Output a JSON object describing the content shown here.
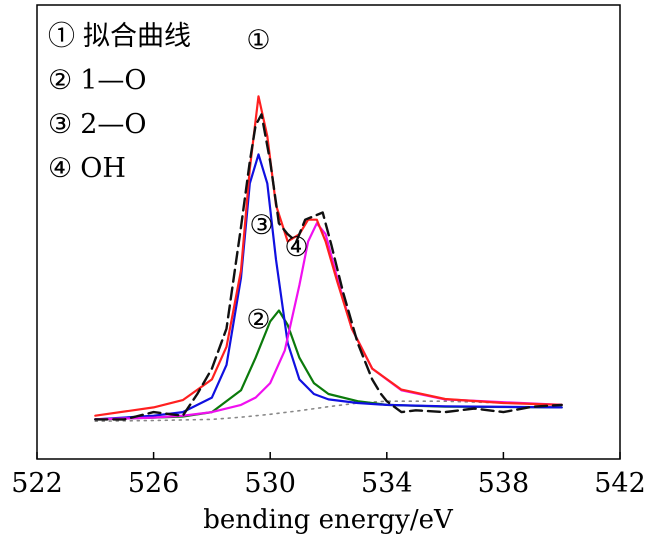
{
  "chart_data": {
    "type": "line",
    "xlabel": "bending energy/eV",
    "ylabel": "",
    "xlim": [
      522,
      542
    ],
    "ylim": [
      0,
      1
    ],
    "xticks": [
      522,
      526,
      530,
      534,
      538,
      542
    ],
    "grid": false,
    "legend": {
      "placement": "top-left",
      "entries": [
        {
          "marker": "①",
          "label": "拟合曲线"
        },
        {
          "marker": "②",
          "label": "1—O"
        },
        {
          "marker": "③",
          "label": "2—O"
        },
        {
          "marker": "④",
          "label": "OH"
        }
      ]
    },
    "annotations": [
      {
        "text": "①",
        "x": 529.6,
        "y": 1.03
      },
      {
        "text": "③",
        "x": 529.7,
        "y": 0.52
      },
      {
        "text": "④",
        "x": 530.9,
        "y": 0.46
      },
      {
        "text": "②",
        "x": 529.6,
        "y": 0.26
      }
    ],
    "series": [
      {
        "color": "#ff2020",
        "style": "solid",
        "x": [
          524,
          526,
          527,
          528,
          528.5,
          529,
          529.3,
          529.6,
          529.9,
          530.2,
          530.6,
          531,
          531.3,
          531.6,
          531.9,
          532.3,
          532.8,
          533.5,
          534.5,
          536,
          538,
          540
        ],
        "y": [
          0.02,
          0.043,
          0.063,
          0.12,
          0.21,
          0.42,
          0.7,
          0.9,
          0.79,
          0.6,
          0.5,
          0.52,
          0.56,
          0.56,
          0.5,
          0.39,
          0.26,
          0.15,
          0.092,
          0.066,
          0.055,
          0.05
        ]
      },
      {
        "color": "#1010e0",
        "style": "solid",
        "x": [
          524,
          526,
          527,
          528,
          528.5,
          529,
          529.3,
          529.6,
          529.9,
          530.2,
          530.6,
          531,
          531.5,
          532,
          533,
          534,
          536,
          540
        ],
        "y": [
          0.01,
          0.02,
          0.03,
          0.07,
          0.16,
          0.4,
          0.66,
          0.74,
          0.66,
          0.45,
          0.22,
          0.12,
          0.08,
          0.065,
          0.055,
          0.05,
          0.046,
          0.043
        ]
      },
      {
        "color": "#0b7a0b",
        "style": "solid",
        "x": [
          524,
          526,
          527,
          528,
          529,
          529.5,
          530,
          530.3,
          530.6,
          531,
          531.5,
          532,
          533,
          534,
          536,
          540
        ],
        "y": [
          0.01,
          0.015,
          0.018,
          0.03,
          0.09,
          0.18,
          0.28,
          0.31,
          0.27,
          0.18,
          0.11,
          0.08,
          0.06,
          0.05,
          0.045,
          0.043
        ]
      },
      {
        "color": "#f010f0",
        "style": "solid",
        "x": [
          524,
          526,
          527,
          528,
          529,
          529.5,
          530,
          530.5,
          531,
          531.3,
          531.6,
          531.9,
          532.3,
          532.8,
          533.5,
          534.5,
          536,
          540
        ],
        "y": [
          0.01,
          0.015,
          0.02,
          0.03,
          0.05,
          0.07,
          0.11,
          0.2,
          0.38,
          0.5,
          0.55,
          0.52,
          0.4,
          0.26,
          0.15,
          0.09,
          0.065,
          0.05
        ]
      },
      {
        "color": "#111111",
        "style": "dashed",
        "x": [
          524,
          525,
          526,
          527,
          527.5,
          528,
          528.5,
          529,
          529.3,
          529.5,
          529.7,
          530,
          530.3,
          530.6,
          530.9,
          531.2,
          531.5,
          531.8,
          532.1,
          532.5,
          533,
          533.5,
          533.8,
          534,
          534.5,
          535,
          536,
          537,
          538,
          539,
          540
        ],
        "y": [
          0.01,
          0.01,
          0.03,
          0.02,
          0.08,
          0.15,
          0.26,
          0.54,
          0.72,
          0.82,
          0.85,
          0.72,
          0.55,
          0.52,
          0.5,
          0.56,
          0.57,
          0.58,
          0.49,
          0.36,
          0.22,
          0.12,
          0.08,
          0.06,
          0.03,
          0.035,
          0.03,
          0.04,
          0.03,
          0.045,
          0.05
        ]
      },
      {
        "color": "#888888",
        "style": "dotted",
        "x": [
          524,
          526,
          528,
          529,
          530,
          531,
          532,
          533,
          534,
          536,
          538,
          540
        ],
        "y": [
          0.005,
          0.007,
          0.01,
          0.016,
          0.024,
          0.034,
          0.045,
          0.055,
          0.06,
          0.06,
          0.055,
          0.05
        ]
      }
    ]
  }
}
